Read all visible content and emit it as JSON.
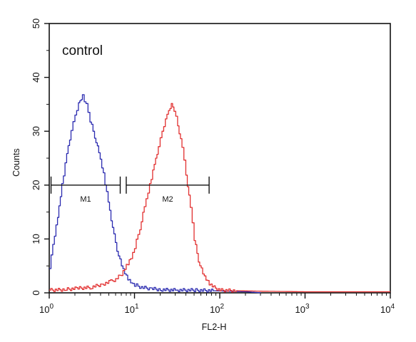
{
  "chart_data": {
    "type": "line",
    "annotation": "control",
    "xlabel": "FL2-H",
    "ylabel": "Counts",
    "x_scale": "log",
    "xlim": [
      1,
      10000
    ],
    "ylim": [
      0,
      50
    ],
    "x_ticks": [
      {
        "value": 1,
        "base": "10",
        "exp": "0"
      },
      {
        "value": 10,
        "base": "10",
        "exp": "1"
      },
      {
        "value": 100,
        "base": "10",
        "exp": "2"
      },
      {
        "value": 1000,
        "base": "10",
        "exp": "3"
      },
      {
        "value": 10000,
        "base": "10",
        "exp": "4"
      }
    ],
    "y_ticks": [
      "0",
      "10",
      "20",
      "30",
      "40",
      "50"
    ],
    "y_tick_values": [
      0,
      10,
      20,
      30,
      40,
      50
    ],
    "grid": false,
    "series": [
      {
        "color": "#2b2bb0",
        "x": [
          1.0,
          1.1,
          1.25,
          1.4,
          1.6,
          1.8,
          2.0,
          2.2,
          2.45,
          2.7,
          3.0,
          3.4,
          3.8,
          4.3,
          4.9,
          5.5,
          6.2,
          7.0,
          8.0,
          9.0,
          10,
          12,
          15,
          20,
          30,
          50,
          80,
          120,
          200,
          300
        ],
        "y": [
          4.5,
          9,
          14,
          20,
          26,
          30,
          33,
          35,
          36.5,
          35,
          32,
          29,
          26,
          22,
          17,
          12,
          8,
          5,
          3,
          2,
          1.5,
          1,
          0.8,
          0.6,
          0.5,
          0.5,
          0.4,
          0.3,
          0.2,
          0
        ]
      },
      {
        "color": "#e23030",
        "x": [
          1.0,
          1.5,
          2.0,
          3.0,
          4.0,
          5.0,
          6.0,
          7.0,
          8.0,
          9.0,
          10,
          11.5,
          13,
          15,
          17,
          19,
          21,
          23,
          25,
          27,
          29,
          32,
          36,
          40,
          45,
          50,
          56,
          63,
          72,
          85,
          100,
          150,
          300,
          1000,
          10000
        ],
        "y": [
          0.5,
          0.6,
          0.8,
          1,
          1.5,
          2,
          2.5,
          3.5,
          5,
          6.5,
          8.5,
          12,
          16,
          20,
          24,
          27,
          30,
          32,
          34,
          35,
          34,
          31,
          27,
          22,
          16,
          10,
          6,
          3.5,
          2,
          1,
          0.5,
          0.4,
          0.3,
          0.2,
          0.2
        ]
      }
    ],
    "markers": [
      {
        "label": "M1",
        "x_range": [
          1.05,
          6.8
        ],
        "y": 20
      },
      {
        "label": "M2",
        "x_range": [
          8.0,
          75
        ],
        "y": 20
      }
    ]
  }
}
